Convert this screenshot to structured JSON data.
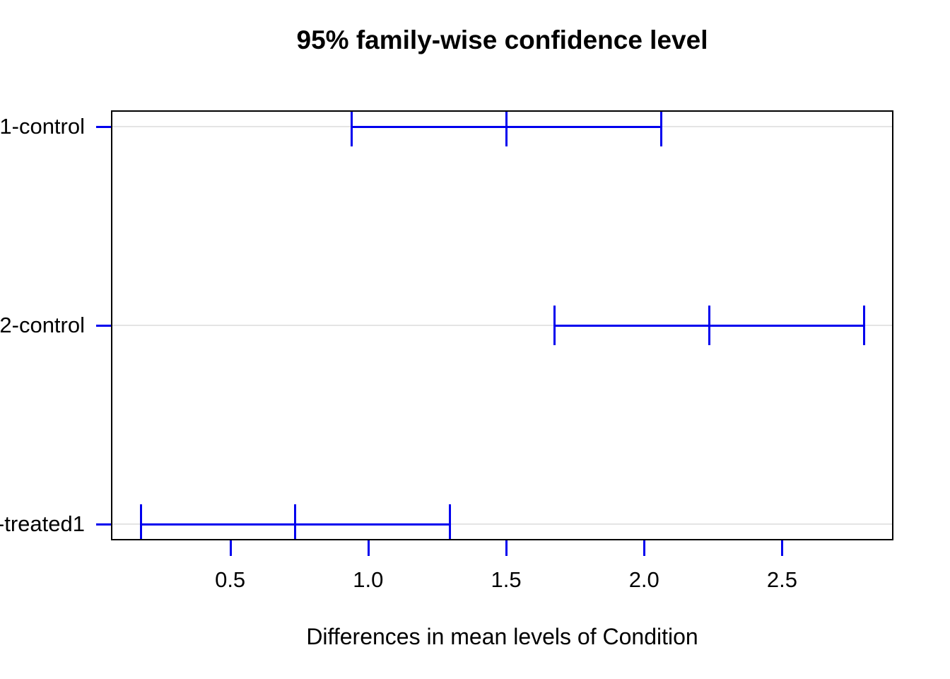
{
  "chart_data": {
    "type": "interval",
    "subtype": "tukey-hsd-horizontal-confidence-intervals",
    "title": "95% family-wise confidence level",
    "xlabel": "Differences in mean levels of Condition",
    "ylabel": "",
    "xlim": [
      0.068,
      2.903
    ],
    "grid": "one horizontal light-gray line per comparison row",
    "legend": "none",
    "interval_color": "#0000ee",
    "axis_tick_color": "#0000ee",
    "box_color": "#000000",
    "gridline_color": "#e4e4e4",
    "cap_half_height_units": 0.1,
    "x_ticks": [
      {
        "value": 0.5,
        "label": "0.5"
      },
      {
        "value": 1.0,
        "label": "1.0"
      },
      {
        "value": 1.5,
        "label": "1.5"
      },
      {
        "value": 2.0,
        "label": "2.0"
      },
      {
        "value": 2.5,
        "label": "2.5"
      }
    ],
    "rows": [
      {
        "label": "1-control",
        "lwr": 0.94,
        "diff": 1.5,
        "upr": 2.06
      },
      {
        "label": "2-control",
        "lwr": 1.675,
        "diff": 2.235,
        "upr": 2.795
      },
      {
        "label": "-treated1",
        "lwr": 0.175,
        "diff": 0.735,
        "upr": 1.295
      }
    ]
  }
}
